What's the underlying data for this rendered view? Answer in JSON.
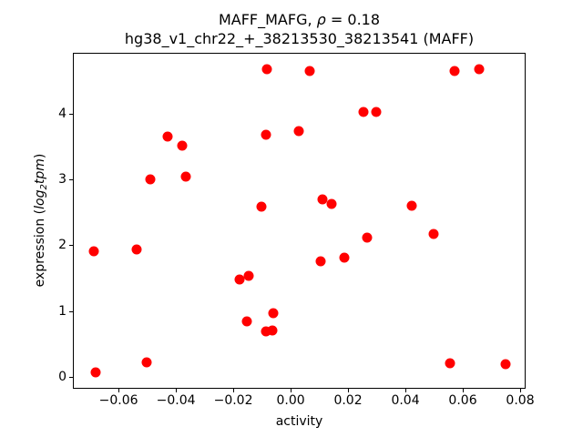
{
  "figure": {
    "title_line1": {
      "prefix": "MAFF_MAFG, ",
      "rho": "ρ",
      "suffix": " = 0.18"
    },
    "title_line2": "hg38_v1_chr22_+_38213530_38213541 (MAFF)",
    "xlabel": "activity",
    "ylabel": {
      "prefix": "expression (",
      "log_word": "log",
      "sub": "2",
      "var_word": "tpm",
      "close": ")"
    }
  },
  "chart_data": {
    "type": "scatter",
    "title": "MAFF_MAFG, ρ = 0.18",
    "subtitle": "hg38_v1_chr22_+_38213530_38213541 (MAFF)",
    "xlabel": "activity",
    "ylabel": "expression (log2tpm)",
    "legend": "none",
    "grid": false,
    "marker_color": "#ff0000",
    "marker_diameter_px": 11,
    "xlim": [
      -0.0759,
      0.0819
    ],
    "ylim": [
      -0.18,
      4.92
    ],
    "x_ticks": [
      {
        "v": -0.06,
        "label": "−0.06"
      },
      {
        "v": -0.04,
        "label": "−0.04"
      },
      {
        "v": -0.02,
        "label": "−0.02"
      },
      {
        "v": 0.0,
        "label": "0.00"
      },
      {
        "v": 0.02,
        "label": "0.02"
      },
      {
        "v": 0.04,
        "label": "0.04"
      },
      {
        "v": 0.06,
        "label": "0.06"
      },
      {
        "v": 0.08,
        "label": "0.08"
      }
    ],
    "y_ticks": [
      {
        "v": 0,
        "label": "0"
      },
      {
        "v": 1,
        "label": "1"
      },
      {
        "v": 2,
        "label": "2"
      },
      {
        "v": 3,
        "label": "3"
      },
      {
        "v": 4,
        "label": "4"
      }
    ],
    "points": [
      {
        "x": -0.0083,
        "y": 4.67
      },
      {
        "x": 0.0067,
        "y": 4.65
      },
      {
        "x": 0.0571,
        "y": 4.65
      },
      {
        "x": 0.0657,
        "y": 4.67
      },
      {
        "x": 0.0254,
        "y": 4.02
      },
      {
        "x": 0.0298,
        "y": 4.02
      },
      {
        "x": 0.0029,
        "y": 3.73
      },
      {
        "x": -0.0086,
        "y": 3.68
      },
      {
        "x": -0.0429,
        "y": 3.65
      },
      {
        "x": -0.0378,
        "y": 3.51
      },
      {
        "x": -0.0365,
        "y": 3.04
      },
      {
        "x": -0.0489,
        "y": 3.0
      },
      {
        "x": 0.0111,
        "y": 2.7
      },
      {
        "x": 0.0143,
        "y": 2.63
      },
      {
        "x": 0.0422,
        "y": 2.6
      },
      {
        "x": -0.0102,
        "y": 2.59
      },
      {
        "x": 0.0498,
        "y": 2.17
      },
      {
        "x": 0.0267,
        "y": 2.12
      },
      {
        "x": -0.0537,
        "y": 1.94
      },
      {
        "x": -0.0686,
        "y": 1.91
      },
      {
        "x": 0.0187,
        "y": 1.81
      },
      {
        "x": 0.0105,
        "y": 1.76
      },
      {
        "x": -0.0146,
        "y": 1.54
      },
      {
        "x": -0.0178,
        "y": 1.48
      },
      {
        "x": -0.006,
        "y": 0.97
      },
      {
        "x": -0.0152,
        "y": 0.84
      },
      {
        "x": -0.0086,
        "y": 0.69
      },
      {
        "x": -0.0063,
        "y": 0.7
      },
      {
        "x": -0.0502,
        "y": 0.22
      },
      {
        "x": 0.0556,
        "y": 0.21
      },
      {
        "x": 0.0749,
        "y": 0.19
      },
      {
        "x": -0.0679,
        "y": 0.07
      }
    ]
  }
}
